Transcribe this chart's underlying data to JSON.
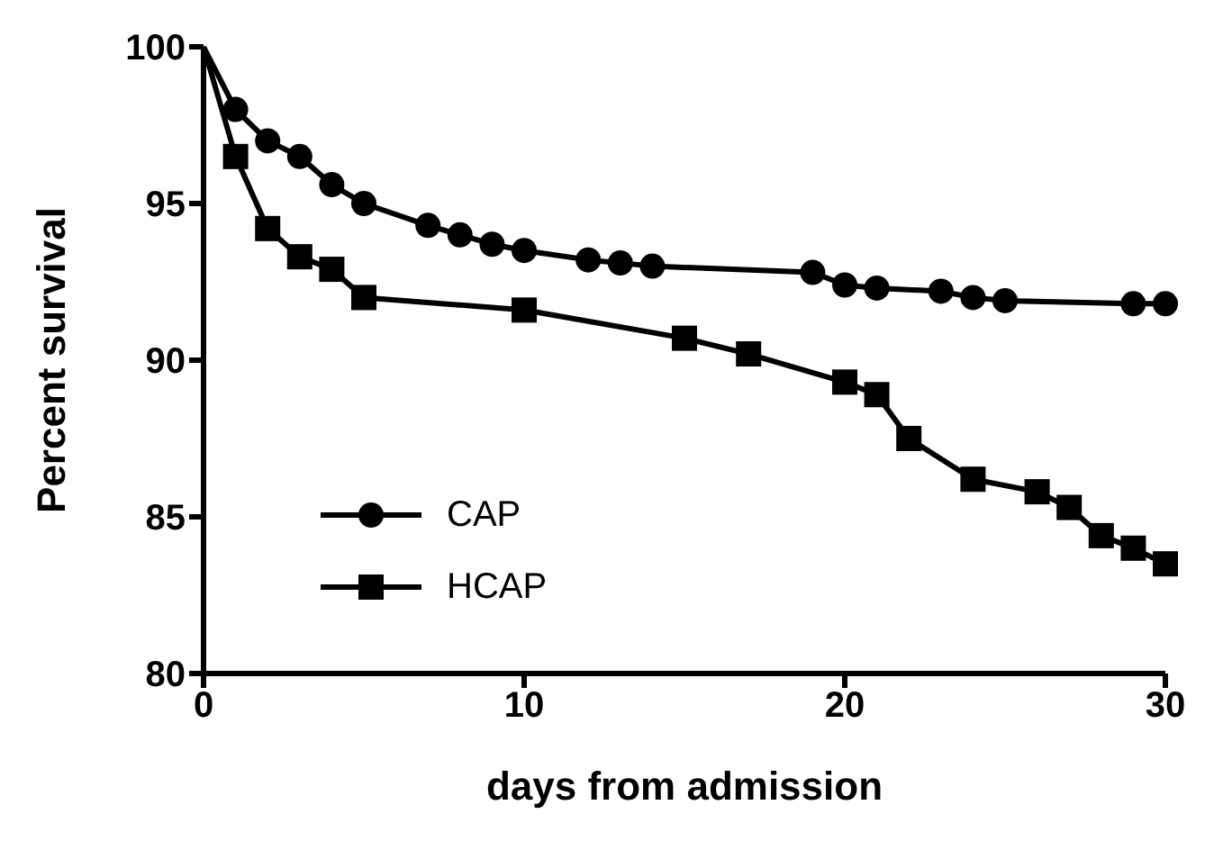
{
  "chart_data": {
    "type": "line",
    "xlabel": "days from admission",
    "ylabel": "Percent survival",
    "xlim": [
      0,
      30
    ],
    "xticks": [
      0,
      10,
      20,
      30
    ],
    "ylim": [
      80,
      100
    ],
    "yticks": [
      80,
      85,
      90,
      95,
      100
    ],
    "legend": "bottom left",
    "line_style": "solid",
    "series": [
      {
        "name": "CAP",
        "color": "#000000",
        "marker": "circle",
        "x": [
          0,
          1,
          2,
          3,
          4,
          5,
          7,
          8,
          9,
          10,
          12,
          13,
          14,
          19,
          20,
          21,
          23,
          24,
          25,
          29,
          30
        ],
        "values": [
          100,
          98.0,
          97.0,
          96.5,
          95.6,
          95.0,
          94.3,
          94.0,
          93.7,
          93.5,
          93.2,
          93.1,
          93.0,
          92.8,
          92.4,
          92.3,
          92.2,
          92.0,
          91.9,
          91.8,
          91.8
        ]
      },
      {
        "name": "HCAP",
        "color": "#000000",
        "marker": "square",
        "x": [
          0,
          1,
          2,
          3,
          4,
          5,
          10,
          15,
          17,
          20,
          21,
          22,
          24,
          26,
          27,
          28,
          29,
          30
        ],
        "values": [
          100,
          96.5,
          94.2,
          93.3,
          92.9,
          92.0,
          91.6,
          90.7,
          90.2,
          89.3,
          88.9,
          87.5,
          86.2,
          85.8,
          85.3,
          84.4,
          84.0,
          83.5
        ]
      }
    ]
  }
}
